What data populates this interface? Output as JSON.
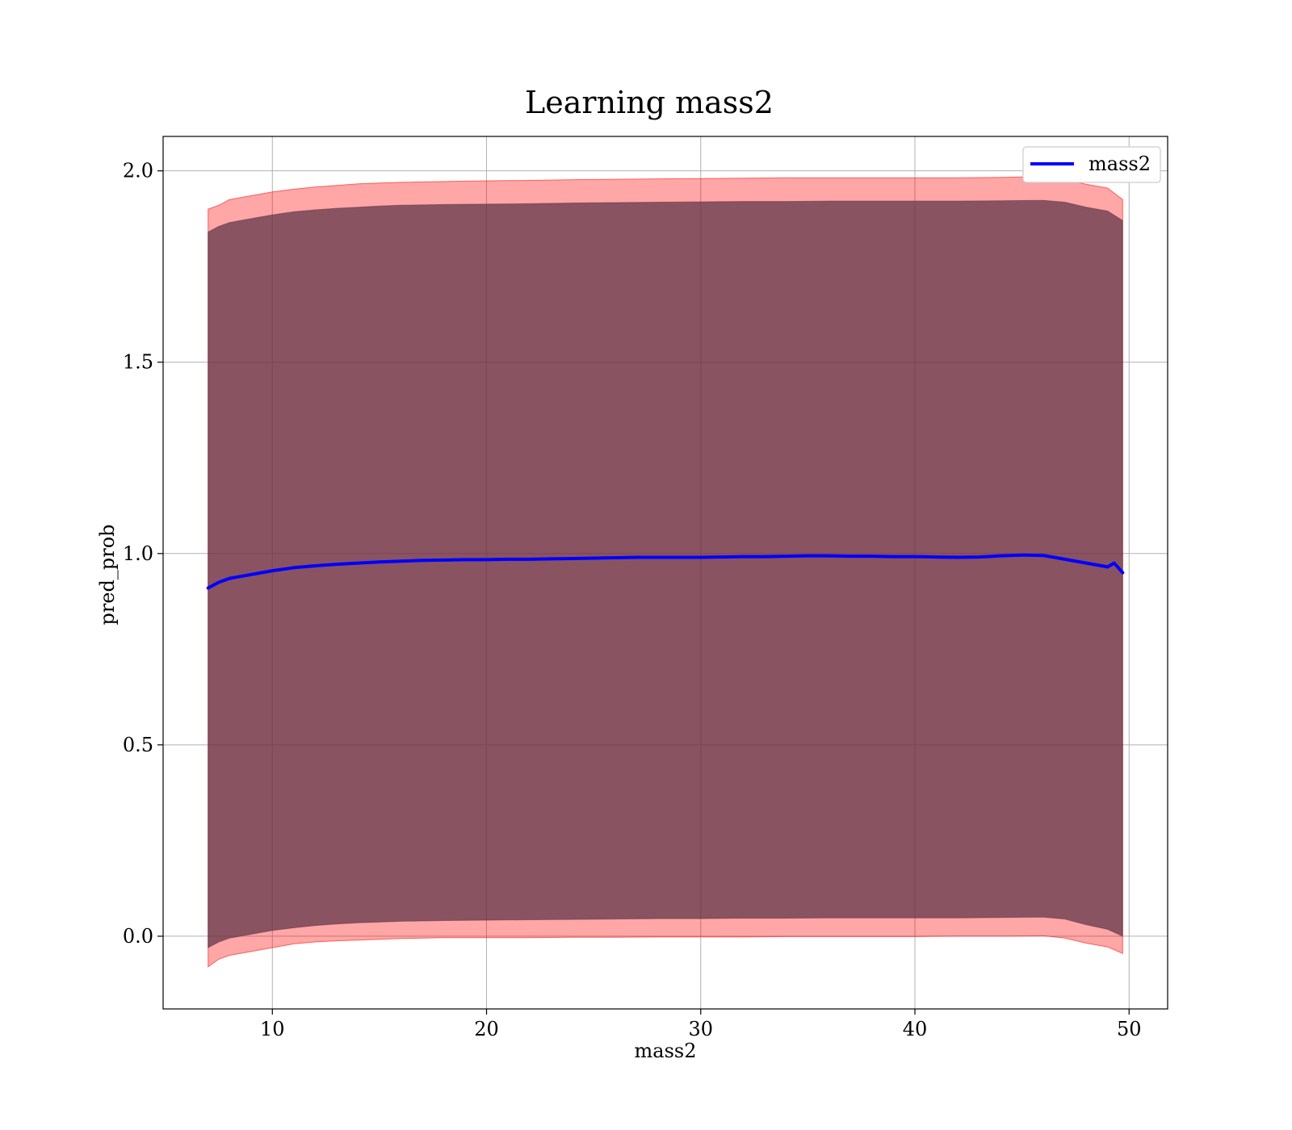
{
  "chart_data": {
    "type": "area",
    "title": "Learning mass2",
    "xlabel": "mass2",
    "ylabel": "pred_prob",
    "xlim": [
      4.9,
      51.8
    ],
    "ylim": [
      -0.19,
      2.09
    ],
    "xticks": [
      10,
      20,
      30,
      40,
      50
    ],
    "xtick_labels": [
      "10",
      "20",
      "30",
      "40",
      "50"
    ],
    "yticks": [
      0.0,
      0.5,
      1.0,
      1.5,
      2.0
    ],
    "ytick_labels": [
      "0.0",
      "0.5",
      "1.0",
      "1.5",
      "2.0"
    ],
    "grid": true,
    "legend": {
      "position": "top-right",
      "entries": [
        "mass2"
      ]
    },
    "series": [
      {
        "name": "mass2",
        "type": "line",
        "color": "#0000ff",
        "x": [
          7.0,
          7.5,
          8.0,
          8.5,
          9.0,
          9.5,
          10.0,
          11.0,
          12.0,
          13.0,
          14.0,
          15.0,
          16.0,
          17.0,
          18.0,
          19.0,
          20.0,
          21.0,
          22.0,
          23.0,
          24.0,
          25.0,
          26.0,
          27.0,
          28.0,
          29.0,
          30.0,
          31.0,
          32.0,
          33.0,
          34.0,
          35.0,
          36.0,
          37.0,
          38.0,
          39.0,
          40.0,
          41.0,
          42.0,
          43.0,
          44.0,
          45.0,
          46.0,
          47.0,
          48.0,
          48.5,
          49.0,
          49.3,
          49.7
        ],
        "y": [
          0.91,
          0.925,
          0.935,
          0.94,
          0.945,
          0.95,
          0.955,
          0.963,
          0.968,
          0.972,
          0.975,
          0.978,
          0.98,
          0.982,
          0.983,
          0.984,
          0.984,
          0.985,
          0.985,
          0.986,
          0.987,
          0.988,
          0.989,
          0.99,
          0.99,
          0.99,
          0.99,
          0.991,
          0.992,
          0.992,
          0.993,
          0.994,
          0.994,
          0.993,
          0.993,
          0.992,
          0.992,
          0.991,
          0.99,
          0.991,
          0.994,
          0.996,
          0.995,
          0.985,
          0.975,
          0.97,
          0.965,
          0.975,
          0.95
        ]
      },
      {
        "name": "",
        "type": "band",
        "color": "#ff0000",
        "x": [
          7.0,
          7.5,
          8.0,
          9.0,
          10.0,
          11.0,
          12.0,
          13.0,
          14.0,
          15.0,
          16.0,
          18.0,
          20.0,
          22.0,
          24.0,
          26.0,
          28.0,
          30.0,
          32.0,
          34.0,
          36.0,
          38.0,
          40.0,
          42.0,
          44.0,
          46.0,
          47.0,
          48.0,
          49.0,
          49.7
        ],
        "upper": [
          1.9,
          1.91,
          1.925,
          1.935,
          1.945,
          1.952,
          1.958,
          1.962,
          1.966,
          1.968,
          1.97,
          1.972,
          1.974,
          1.975,
          1.977,
          1.978,
          1.979,
          1.98,
          1.981,
          1.982,
          1.982,
          1.982,
          1.982,
          1.982,
          1.983,
          1.985,
          1.978,
          1.965,
          1.955,
          1.925
        ],
        "lower": [
          -0.08,
          -0.06,
          -0.05,
          -0.04,
          -0.03,
          -0.02,
          -0.015,
          -0.012,
          -0.01,
          -0.008,
          -0.006,
          -0.004,
          -0.004,
          -0.004,
          -0.003,
          -0.003,
          -0.002,
          -0.002,
          -0.002,
          -0.001,
          -0.001,
          -0.001,
          -0.001,
          0.0,
          0.0,
          0.001,
          -0.005,
          -0.018,
          -0.028,
          -0.045
        ]
      },
      {
        "name": "",
        "type": "band",
        "color": "#5c3347",
        "x": [
          7.0,
          7.5,
          8.0,
          9.0,
          10.0,
          11.0,
          12.0,
          13.0,
          14.0,
          15.0,
          16.0,
          18.0,
          20.0,
          22.0,
          24.0,
          26.0,
          28.0,
          30.0,
          32.0,
          34.0,
          36.0,
          38.0,
          40.0,
          42.0,
          44.0,
          46.0,
          47.0,
          48.0,
          49.0,
          49.7
        ],
        "upper": [
          1.84,
          1.855,
          1.865,
          1.875,
          1.885,
          1.893,
          1.898,
          1.902,
          1.905,
          1.908,
          1.91,
          1.912,
          1.913,
          1.914,
          1.916,
          1.917,
          1.918,
          1.919,
          1.92,
          1.92,
          1.921,
          1.921,
          1.921,
          1.921,
          1.922,
          1.923,
          1.918,
          1.905,
          1.895,
          1.87
        ],
        "lower": [
          -0.03,
          -0.015,
          -0.005,
          0.005,
          0.015,
          0.022,
          0.028,
          0.032,
          0.035,
          0.037,
          0.039,
          0.041,
          0.042,
          0.043,
          0.044,
          0.045,
          0.046,
          0.046,
          0.047,
          0.047,
          0.048,
          0.048,
          0.048,
          0.048,
          0.049,
          0.05,
          0.045,
          0.03,
          0.018,
          0.0
        ]
      }
    ]
  }
}
